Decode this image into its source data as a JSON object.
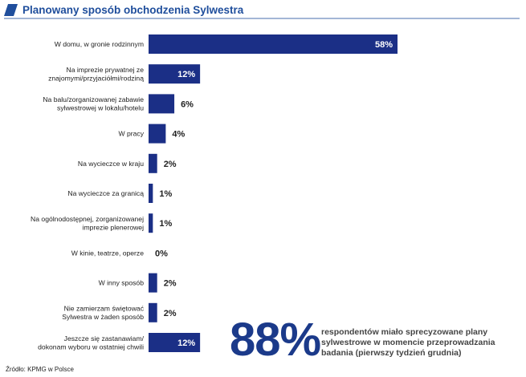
{
  "header": {
    "title": "Planowany sposób obchodzenia Sylwestra",
    "accent_color": "#1f4e9c"
  },
  "chart_data": {
    "type": "bar",
    "orientation": "horizontal",
    "title": "Planowany sposób obchodzenia Sylwestra",
    "xlabel": "",
    "ylabel": "",
    "xlim": [
      0,
      58
    ],
    "grid": false,
    "bar_color": "#1b2f86",
    "categories": [
      [
        "W domu, w gronie rodzinnym"
      ],
      [
        "Na imprezie prywatnej ze",
        "znajomymi/przyjaciółmi/rodziną"
      ],
      [
        "Na balu/zorganizowanej zabawie",
        "sylwestrowej w lokalu/hotelu"
      ],
      [
        "W pracy"
      ],
      [
        "Na wycieczce w kraju"
      ],
      [
        "Na wycieczce za granicą"
      ],
      [
        "Na ogólnodostępnej, zorganizowanej",
        "imprezie plenerowej"
      ],
      [
        "W kinie, teatrze, operze"
      ],
      [
        "W inny sposób"
      ],
      [
        "Nie zamierzam świętować",
        "Sylwestra w żaden sposób"
      ],
      [
        "Jeszcze się zastanawiam/",
        "dokonam wyboru w ostatniej chwili"
      ]
    ],
    "values": [
      58,
      12,
      6,
      4,
      2,
      1,
      1,
      0,
      2,
      2,
      12
    ],
    "value_labels": [
      "58%",
      "12%",
      "6%",
      "4%",
      "2%",
      "1%",
      "1%",
      "0%",
      "2%",
      "2%",
      "12%"
    ]
  },
  "callout": {
    "value": "88%",
    "text": "respondentów miało sprecyzowane plany sylwestrowe w momencie przeprowadzania badania (pierwszy tydzień grudnia)"
  },
  "source": "Źródło: KPMG w Polsce"
}
